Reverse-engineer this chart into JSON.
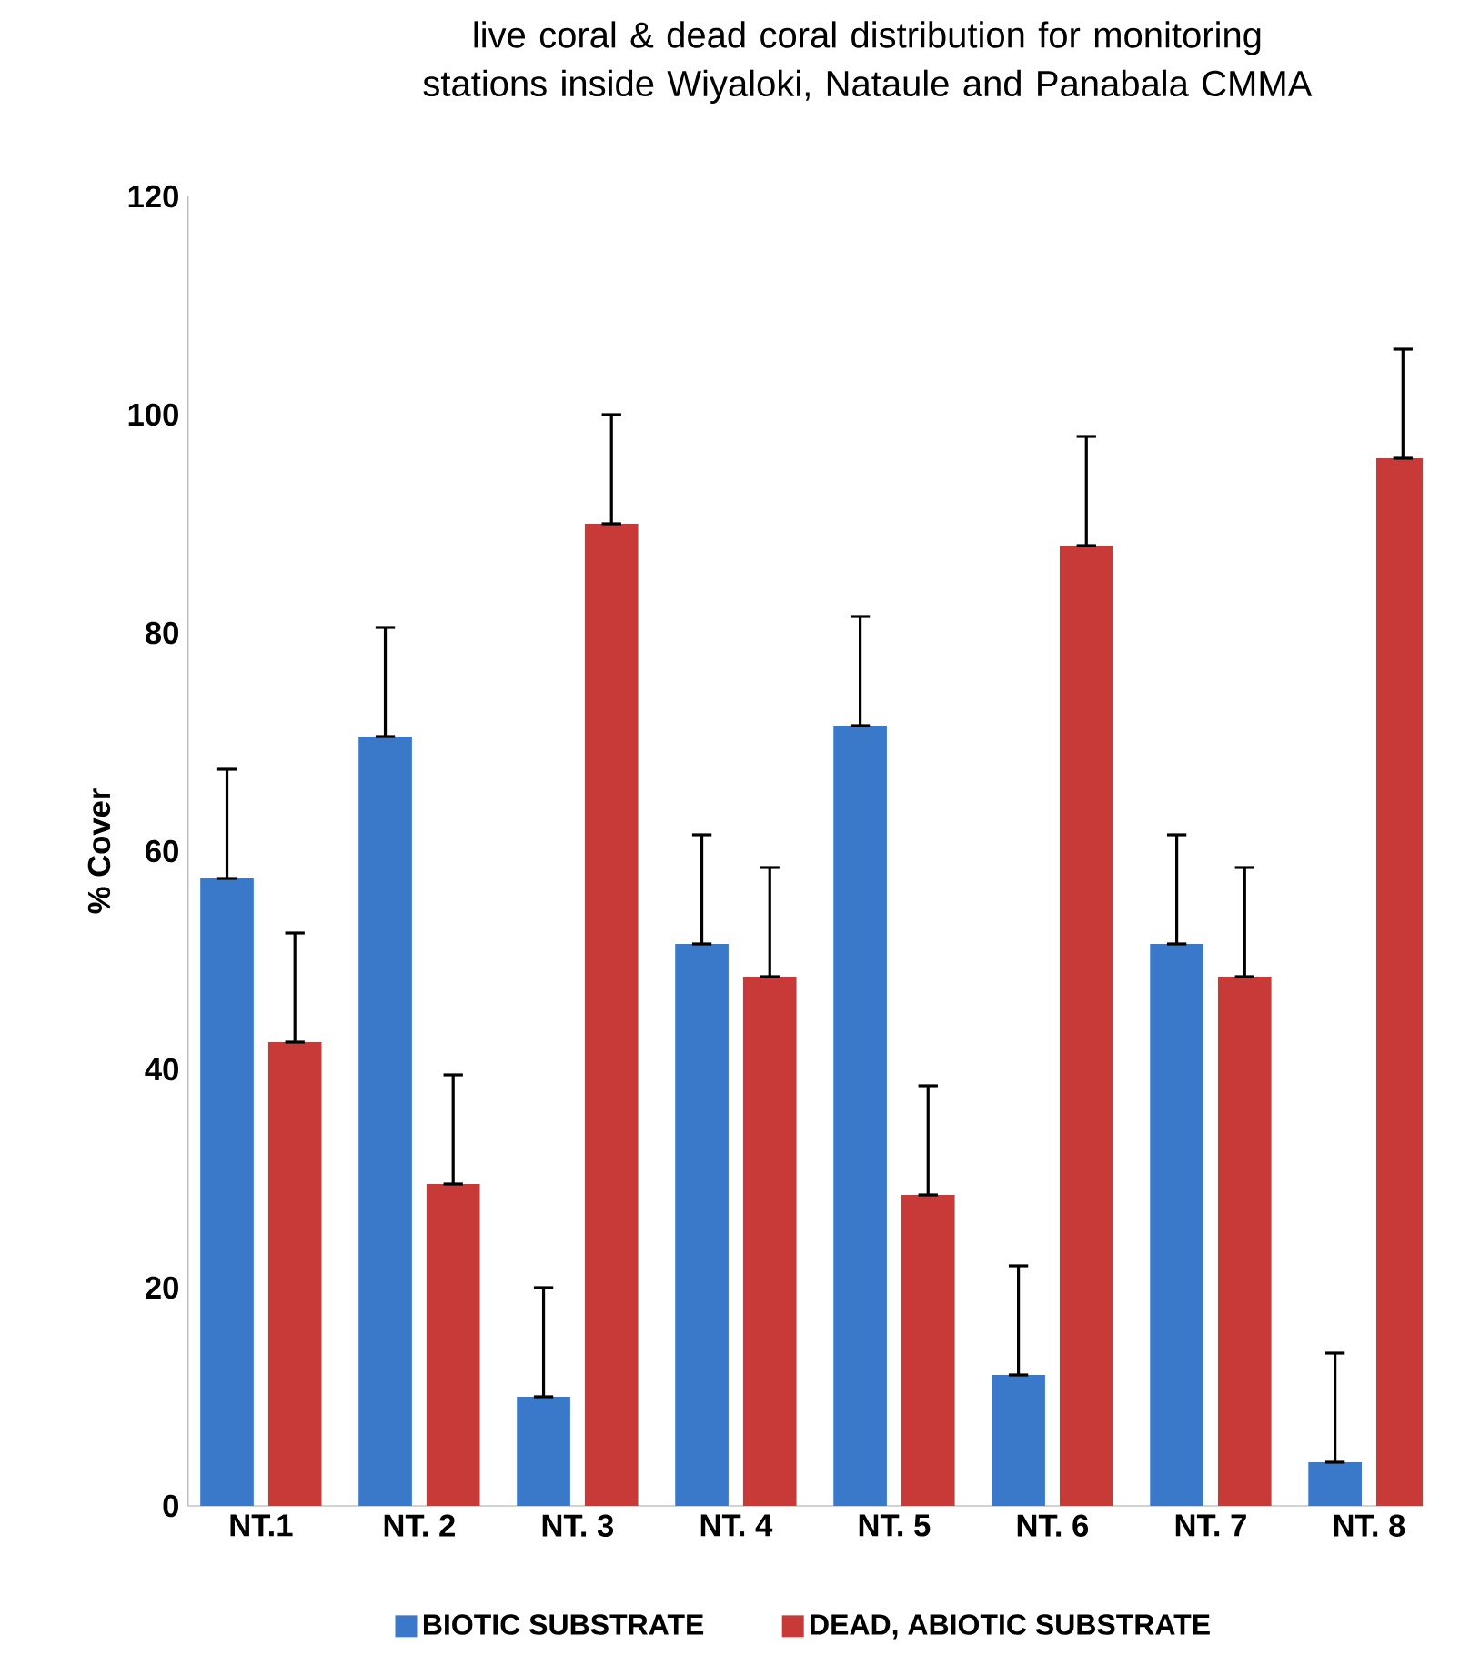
{
  "chart_data": {
    "type": "bar",
    "title": "live coral & dead coral distribution for monitoring stations inside Wiyaloki, Nataule and Panabala CMMA",
    "ylabel": "% Cover",
    "categories": [
      "NT.1",
      "NT. 2",
      "NT. 3",
      "NT. 4",
      "NT. 5",
      "NT. 6",
      "NT. 7",
      "NT. 8"
    ],
    "series": [
      {
        "name": "BIOTIC SUBSTRATE",
        "color": "#3a78c9",
        "values": [
          57.5,
          70.5,
          10,
          51.5,
          71.5,
          12,
          51.5,
          4
        ],
        "errors": [
          [
            57.5,
            67.5
          ],
          [
            70.5,
            80.5
          ],
          [
            10,
            20
          ],
          [
            51.5,
            61.5
          ],
          [
            71.5,
            81.5
          ],
          [
            12,
            22
          ],
          [
            51.5,
            61.5
          ],
          [
            4,
            14
          ]
        ]
      },
      {
        "name": "DEAD, ABIOTIC SUBSTRATE",
        "color": "#c83a38",
        "values": [
          42.5,
          29.5,
          90,
          48.5,
          28.5,
          88,
          48.5,
          96
        ],
        "errors": [
          [
            42.5,
            52.5
          ],
          [
            29.5,
            39.5
          ],
          [
            90,
            100
          ],
          [
            48.5,
            58.5
          ],
          [
            28.5,
            38.5
          ],
          [
            88,
            98
          ],
          [
            48.5,
            58.5
          ],
          [
            96,
            106
          ]
        ]
      }
    ],
    "ylim": [
      0,
      120
    ],
    "yticks": [
      0,
      20,
      40,
      60,
      80,
      100,
      120
    ],
    "legend": "bottom"
  }
}
